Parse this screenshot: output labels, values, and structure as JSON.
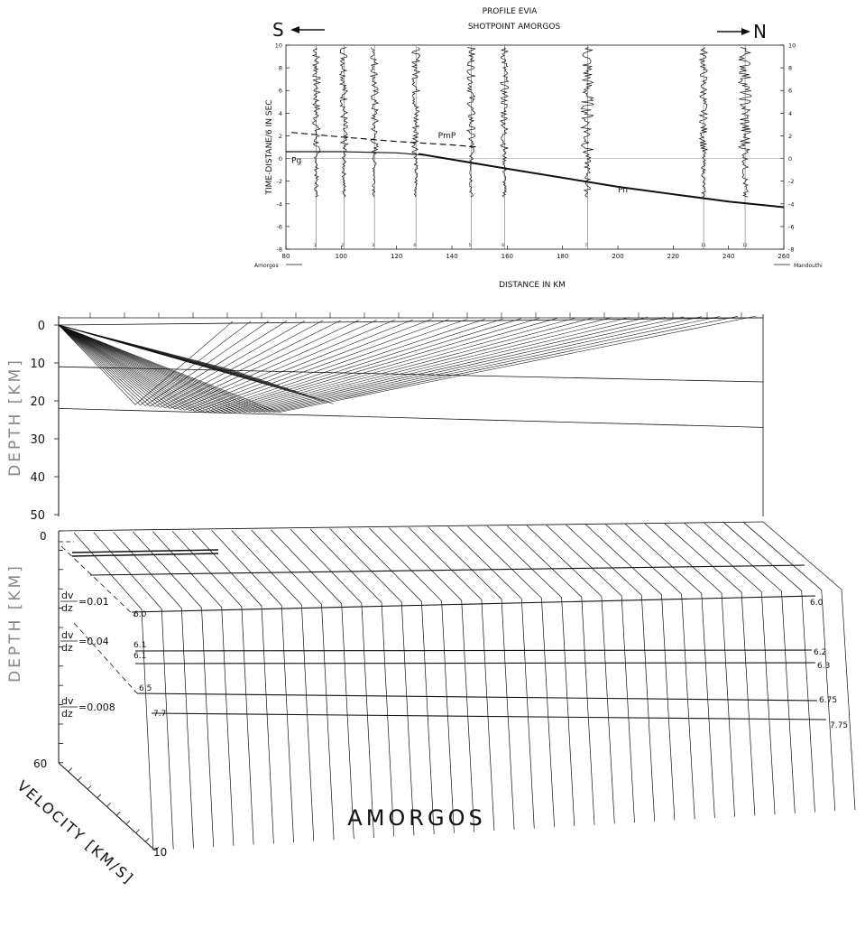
{
  "chart_data": [
    {
      "type": "line",
      "panel": "seismogram record section",
      "title": "PROFILE EVIA",
      "subtitle": "SHOTPOINT AMORGOS",
      "direction_left": "S",
      "direction_right": "N",
      "xlabel": "DISTANCE IN KM",
      "ylabel": "TIME-DISTANE/6 IN SEC",
      "xlim": [
        80,
        260
      ],
      "ylim": [
        -8,
        10
      ],
      "x_ticks": [
        80,
        100,
        120,
        140,
        160,
        180,
        200,
        220,
        240,
        260
      ],
      "y_ticks": [
        10,
        8,
        6,
        4,
        2,
        0,
        -2,
        -4,
        -6,
        -8
      ],
      "station_left": "Amorgos",
      "station_right": "Mandouthi",
      "trace_distances": [
        91,
        101,
        112,
        127,
        147,
        159,
        189,
        231,
        246
      ],
      "trace_numbers": [
        "1",
        "2",
        "3",
        "4",
        "5",
        "6",
        "7",
        "11",
        "12"
      ],
      "series": [
        {
          "name": "Pg",
          "x": [
            80,
            100,
            120,
            130
          ],
          "y": [
            0.6,
            0.6,
            0.5,
            0.3
          ]
        },
        {
          "name": "Pn",
          "x": [
            128,
            160,
            200,
            240,
            260
          ],
          "y": [
            0.4,
            -0.9,
            -2.5,
            -3.8,
            -4.3
          ]
        },
        {
          "name": "PmP",
          "x": [
            82,
            100,
            120,
            140,
            150
          ],
          "y": [
            2.3,
            1.9,
            1.5,
            1.2,
            1.0
          ]
        }
      ]
    },
    {
      "type": "line",
      "panel": "ray tracing",
      "ylabel": "DEPTH [KM]",
      "ylim": [
        0,
        50
      ],
      "y_ticks": [
        "0",
        "10",
        "20",
        "30",
        "40",
        "50"
      ],
      "source_depth": 0,
      "ray_turning_depth": 23,
      "series": [
        {
          "name": "interface 1",
          "x": [
            0,
            240
          ],
          "y": [
            11,
            15
          ]
        },
        {
          "name": "interface 2",
          "x": [
            0,
            240
          ],
          "y": [
            22,
            27
          ]
        }
      ]
    },
    {
      "type": "line",
      "panel": "velocity-depth model",
      "title": "AMORGOS",
      "ylabel": "DEPTH [KM]",
      "zlabel": "VELOCITY [KM/S]",
      "y_ticks_bottom": "60",
      "z_tick": "10",
      "gradients": [
        {
          "label": "dv/dz=0.01",
          "num": "dv",
          "den": "dz",
          "value": "=0.01"
        },
        {
          "label": "dv/dz=0.04",
          "num": "dv",
          "den": "dz",
          "value": "=0.04"
        },
        {
          "label": "dv/dz=0.008",
          "num": "dv",
          "den": "dz",
          "value": "=0.008"
        }
      ],
      "velocity_labels_left": [
        "6.0",
        "6.1",
        "6.1",
        "6.5",
        "7.7"
      ],
      "velocity_labels_right": [
        "6.0",
        "6.2",
        "6.3",
        "6.75",
        "7.75"
      ]
    }
  ]
}
